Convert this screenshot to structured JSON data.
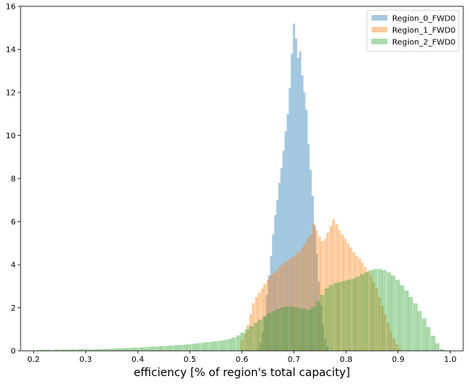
{
  "chart_data": {
    "type": "histogram",
    "xlabel": "efficiency [% of region's total capacity]",
    "ylabel": "",
    "xlim": [
      0.175,
      1.025
    ],
    "ylim": [
      0,
      16
    ],
    "xticks": [
      "0.2",
      "0.3",
      "0.4",
      "0.5",
      "0.6",
      "0.7",
      "0.8",
      "0.9",
      "1.0"
    ],
    "yticks": [
      "0",
      "2",
      "4",
      "6",
      "8",
      "10",
      "12",
      "14",
      "16"
    ],
    "legend_position": "top-right",
    "series": [
      {
        "name": "Region_0_FWD0",
        "color": "#1f77b4",
        "opacity": 0.4,
        "bin_width": 0.0042,
        "bins": [
          [
            0.632,
            0.1
          ],
          [
            0.636,
            0.4
          ],
          [
            0.64,
            0.9
          ],
          [
            0.644,
            1.6
          ],
          [
            0.648,
            2.6
          ],
          [
            0.652,
            3.5
          ],
          [
            0.656,
            4.4
          ],
          [
            0.66,
            5.4
          ],
          [
            0.664,
            6.3
          ],
          [
            0.668,
            7.0
          ],
          [
            0.672,
            7.8
          ],
          [
            0.676,
            8.5
          ],
          [
            0.68,
            9.3
          ],
          [
            0.684,
            10.2
          ],
          [
            0.688,
            11.0
          ],
          [
            0.692,
            12.2
          ],
          [
            0.696,
            13.8
          ],
          [
            0.7,
            15.2
          ],
          [
            0.704,
            14.5
          ],
          [
            0.708,
            13.6
          ],
          [
            0.712,
            13.9
          ],
          [
            0.716,
            12.8
          ],
          [
            0.72,
            12.0
          ],
          [
            0.724,
            11.2
          ],
          [
            0.728,
            9.6
          ],
          [
            0.732,
            8.4
          ],
          [
            0.736,
            7.2
          ],
          [
            0.74,
            5.8
          ],
          [
            0.744,
            4.5
          ],
          [
            0.748,
            3.2
          ],
          [
            0.752,
            2.1
          ],
          [
            0.756,
            1.2
          ],
          [
            0.76,
            0.6
          ],
          [
            0.764,
            0.2
          ]
        ]
      },
      {
        "name": "Region_1_FWD0",
        "color": "#ff7f0e",
        "opacity": 0.4,
        "bin_width": 0.0055,
        "bins": [
          [
            0.6,
            0.5
          ],
          [
            0.606,
            0.8
          ],
          [
            0.611,
            1.2
          ],
          [
            0.617,
            1.7
          ],
          [
            0.622,
            2.2
          ],
          [
            0.628,
            2.5
          ],
          [
            0.633,
            2.7
          ],
          [
            0.639,
            2.9
          ],
          [
            0.644,
            3.1
          ],
          [
            0.65,
            3.3
          ],
          [
            0.655,
            3.5
          ],
          [
            0.661,
            3.6
          ],
          [
            0.666,
            3.7
          ],
          [
            0.672,
            3.9
          ],
          [
            0.677,
            4.0
          ],
          [
            0.683,
            4.1
          ],
          [
            0.688,
            4.2
          ],
          [
            0.694,
            4.3
          ],
          [
            0.699,
            4.4
          ],
          [
            0.705,
            4.5
          ],
          [
            0.71,
            4.6
          ],
          [
            0.716,
            4.8
          ],
          [
            0.721,
            5.0
          ],
          [
            0.727,
            5.2
          ],
          [
            0.732,
            5.4
          ],
          [
            0.738,
            5.9
          ],
          [
            0.743,
            5.6
          ],
          [
            0.749,
            5.3
          ],
          [
            0.754,
            5.1
          ],
          [
            0.76,
            5.2
          ],
          [
            0.765,
            5.5
          ],
          [
            0.771,
            5.8
          ],
          [
            0.776,
            6.1
          ],
          [
            0.782,
            5.9
          ],
          [
            0.787,
            5.6
          ],
          [
            0.793,
            5.4
          ],
          [
            0.798,
            5.2
          ],
          [
            0.804,
            5.0
          ],
          [
            0.809,
            4.8
          ],
          [
            0.815,
            4.6
          ],
          [
            0.82,
            4.4
          ],
          [
            0.826,
            4.3
          ],
          [
            0.831,
            4.1
          ],
          [
            0.837,
            3.9
          ],
          [
            0.842,
            3.7
          ],
          [
            0.848,
            3.5
          ],
          [
            0.853,
            3.2
          ],
          [
            0.859,
            2.9
          ],
          [
            0.864,
            2.5
          ],
          [
            0.87,
            2.1
          ],
          [
            0.875,
            1.7
          ],
          [
            0.881,
            1.3
          ],
          [
            0.886,
            0.9
          ],
          [
            0.892,
            0.6
          ],
          [
            0.897,
            0.3
          ],
          [
            0.903,
            0.1
          ]
        ]
      },
      {
        "name": "Region_2_FWD0",
        "color": "#2ca02c",
        "opacity": 0.4,
        "bin_width": 0.0085,
        "bins": [
          [
            0.21,
            0.04
          ],
          [
            0.219,
            0.05
          ],
          [
            0.227,
            0.05
          ],
          [
            0.236,
            0.03
          ],
          [
            0.244,
            0.06
          ],
          [
            0.253,
            0.05
          ],
          [
            0.261,
            0.06
          ],
          [
            0.27,
            0.05
          ],
          [
            0.278,
            0.06
          ],
          [
            0.287,
            0.07
          ],
          [
            0.295,
            0.08
          ],
          [
            0.304,
            0.08
          ],
          [
            0.312,
            0.06
          ],
          [
            0.321,
            0.07
          ],
          [
            0.329,
            0.08
          ],
          [
            0.338,
            0.09
          ],
          [
            0.346,
            0.09
          ],
          [
            0.355,
            0.1
          ],
          [
            0.363,
            0.11
          ],
          [
            0.372,
            0.12
          ],
          [
            0.38,
            0.13
          ],
          [
            0.389,
            0.14
          ],
          [
            0.397,
            0.15
          ],
          [
            0.406,
            0.16
          ],
          [
            0.414,
            0.17
          ],
          [
            0.423,
            0.19
          ],
          [
            0.431,
            0.2
          ],
          [
            0.44,
            0.21
          ],
          [
            0.448,
            0.22
          ],
          [
            0.457,
            0.23
          ],
          [
            0.465,
            0.24
          ],
          [
            0.474,
            0.26
          ],
          [
            0.482,
            0.27
          ],
          [
            0.491,
            0.29
          ],
          [
            0.499,
            0.31
          ],
          [
            0.508,
            0.33
          ],
          [
            0.516,
            0.35
          ],
          [
            0.525,
            0.38
          ],
          [
            0.533,
            0.4
          ],
          [
            0.542,
            0.42
          ],
          [
            0.55,
            0.44
          ],
          [
            0.559,
            0.47
          ],
          [
            0.567,
            0.5
          ],
          [
            0.576,
            0.55
          ],
          [
            0.584,
            0.62
          ],
          [
            0.593,
            0.72
          ],
          [
            0.601,
            0.85
          ],
          [
            0.61,
            1.0
          ],
          [
            0.618,
            1.15
          ],
          [
            0.627,
            1.3
          ],
          [
            0.635,
            1.45
          ],
          [
            0.644,
            1.6
          ],
          [
            0.652,
            1.75
          ],
          [
            0.661,
            1.85
          ],
          [
            0.669,
            1.95
          ],
          [
            0.678,
            2.0
          ],
          [
            0.686,
            2.05
          ],
          [
            0.695,
            2.05
          ],
          [
            0.703,
            2.02
          ],
          [
            0.712,
            1.98
          ],
          [
            0.72,
            1.95
          ],
          [
            0.729,
            1.9
          ],
          [
            0.737,
            2.05
          ],
          [
            0.746,
            2.3
          ],
          [
            0.754,
            2.6
          ],
          [
            0.763,
            2.9
          ],
          [
            0.771,
            3.05
          ],
          [
            0.78,
            3.15
          ],
          [
            0.788,
            3.2
          ],
          [
            0.797,
            3.25
          ],
          [
            0.805,
            3.3
          ],
          [
            0.814,
            3.35
          ],
          [
            0.822,
            3.45
          ],
          [
            0.831,
            3.55
          ],
          [
            0.839,
            3.65
          ],
          [
            0.848,
            3.75
          ],
          [
            0.856,
            3.8
          ],
          [
            0.865,
            3.8
          ],
          [
            0.873,
            3.75
          ],
          [
            0.882,
            3.65
          ],
          [
            0.89,
            3.5
          ],
          [
            0.899,
            3.3
          ],
          [
            0.907,
            3.05
          ],
          [
            0.916,
            2.8
          ],
          [
            0.924,
            2.5
          ],
          [
            0.933,
            2.2
          ],
          [
            0.941,
            1.85
          ],
          [
            0.95,
            1.5
          ],
          [
            0.958,
            1.1
          ],
          [
            0.967,
            0.7
          ],
          [
            0.975,
            0.35
          ],
          [
            0.984,
            0.08
          ]
        ]
      }
    ]
  }
}
